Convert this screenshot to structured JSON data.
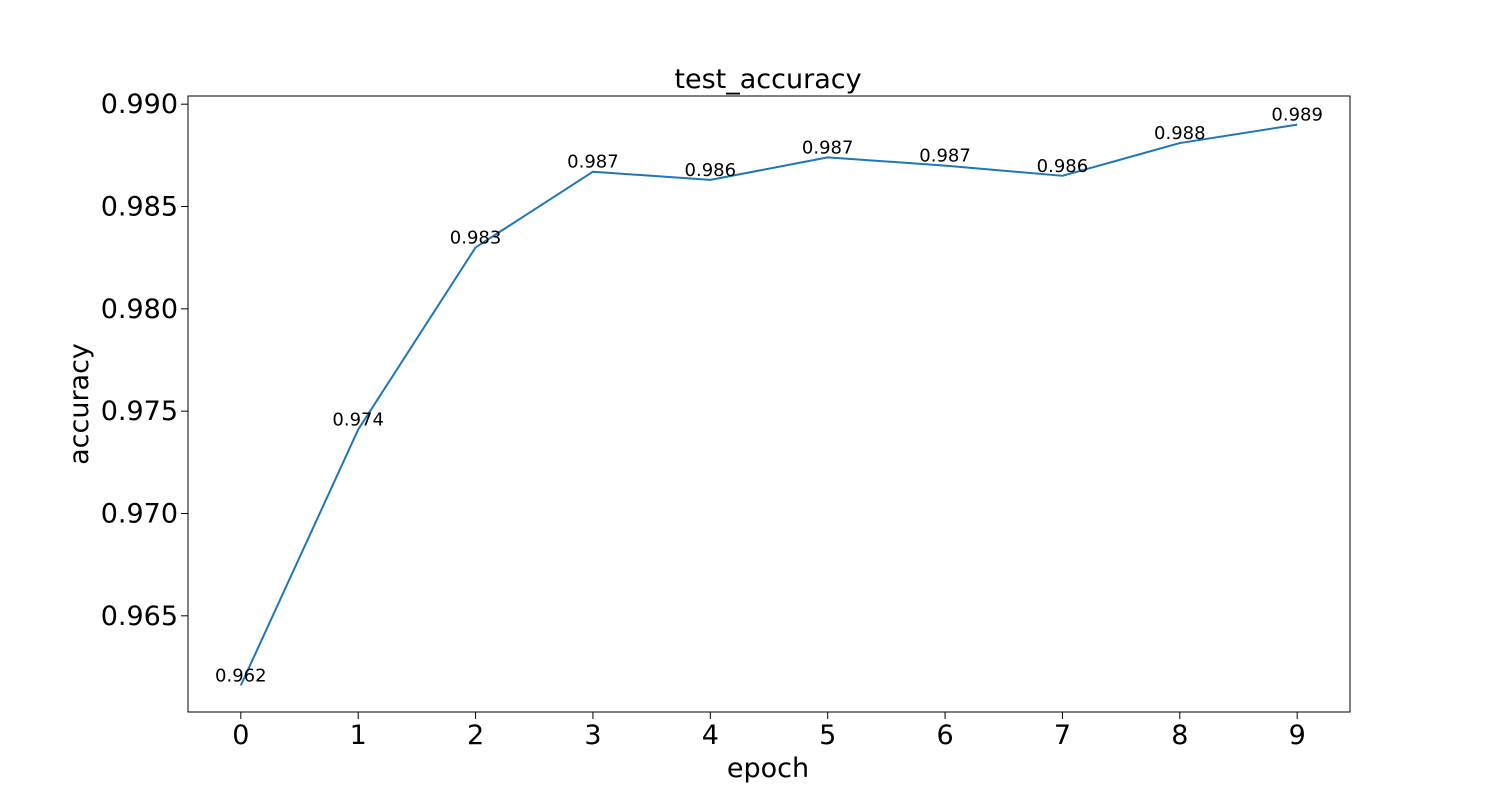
{
  "chart_data": {
    "type": "line",
    "title": "test_accuracy",
    "xlabel": "epoch",
    "ylabel": "accuracy",
    "x": [
      0,
      1,
      2,
      3,
      4,
      5,
      6,
      7,
      8,
      9
    ],
    "series": [
      {
        "values": [
          0.9616,
          0.9741,
          0.983,
          0.9867,
          0.9863,
          0.9874,
          0.987,
          0.9865,
          0.9881,
          0.989
        ],
        "labels": [
          "0.962",
          "0.974",
          "0.983",
          "0.987",
          "0.986",
          "0.987",
          "0.987",
          "0.986",
          "0.988",
          "0.989"
        ],
        "color": "#1f77b4"
      }
    ],
    "xticks": [
      "0",
      "1",
      "2",
      "3",
      "4",
      "5",
      "6",
      "7",
      "8",
      "9"
    ],
    "yticks": [
      "0.965",
      "0.970",
      "0.975",
      "0.980",
      "0.985",
      "0.990"
    ],
    "xlim": [
      -0.45,
      9.45
    ],
    "ylim": [
      0.9603,
      0.9904
    ],
    "grid": false
  }
}
